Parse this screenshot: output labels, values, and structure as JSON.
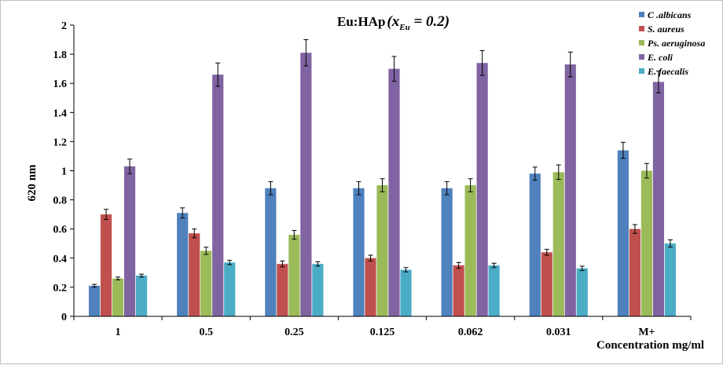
{
  "chart_data": {
    "type": "bar",
    "title": {
      "main": "Eu:HAp",
      "sub_open": "(x",
      "sub_subscript": "Eu",
      "sub_close": " = 0.2)"
    },
    "xlabel": "Concentration mg/ml",
    "ylabel": "620 nm",
    "ylim": [
      0,
      2
    ],
    "yticks": [
      "0",
      "0.2",
      "0.4",
      "0.6",
      "0.8",
      "1",
      "1.2",
      "1.4",
      "1.6",
      "1.8",
      "2"
    ],
    "categories": [
      "1",
      "0.5",
      "0.25",
      "0.125",
      "0.062",
      "0.031",
      "M+"
    ],
    "series": [
      {
        "name": "C .albicans",
        "color": "#4f81bd",
        "values": [
          0.21,
          0.71,
          0.88,
          0.88,
          0.88,
          0.98,
          1.14
        ],
        "errors": [
          0.01,
          0.035,
          0.045,
          0.045,
          0.045,
          0.045,
          0.055
        ]
      },
      {
        "name": "S. aureus",
        "color": "#c0504d",
        "values": [
          0.7,
          0.57,
          0.36,
          0.4,
          0.35,
          0.44,
          0.6
        ],
        "errors": [
          0.035,
          0.03,
          0.02,
          0.02,
          0.02,
          0.02,
          0.03
        ]
      },
      {
        "name": "Ps. aeruginosa",
        "color": "#9bbb59",
        "values": [
          0.26,
          0.45,
          0.56,
          0.9,
          0.9,
          0.99,
          1.0
        ],
        "errors": [
          0.01,
          0.025,
          0.03,
          0.045,
          0.045,
          0.05,
          0.05
        ]
      },
      {
        "name": "E. coli",
        "color": "#8064a2",
        "values": [
          1.03,
          1.66,
          1.81,
          1.7,
          1.74,
          1.73,
          1.61
        ],
        "errors": [
          0.05,
          0.08,
          0.09,
          0.085,
          0.085,
          0.085,
          0.075
        ]
      },
      {
        "name": "E. faecalis",
        "color": "#4bacc6",
        "values": [
          0.28,
          0.37,
          0.36,
          0.32,
          0.35,
          0.33,
          0.5
        ],
        "errors": [
          0.01,
          0.015,
          0.015,
          0.015,
          0.015,
          0.015,
          0.025
        ]
      }
    ],
    "grid": false,
    "legend_position": "top-right"
  }
}
